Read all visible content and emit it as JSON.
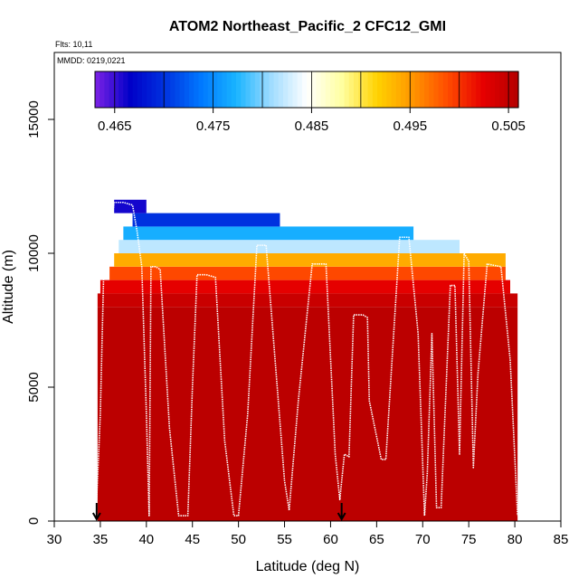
{
  "chart_data": {
    "type": "heatmap",
    "title": "ATOM2 Northeast_Pacific_2 CFC12_GMI",
    "flights_label": "Flts: 10,11",
    "mmdd_label": "MMDD: 0219,0221",
    "xlabel": "Latitude (deg N)",
    "ylabel": "Altitude (m)",
    "xlim": [
      30,
      85
    ],
    "ylim": [
      0,
      17500
    ],
    "x_ticks": [
      30,
      35,
      40,
      45,
      50,
      55,
      60,
      65,
      70,
      75,
      80,
      85
    ],
    "x_tick_labels": [
      "30",
      "35",
      "40",
      "45",
      "50",
      "55",
      "60",
      "65",
      "70",
      "75",
      "80",
      "85"
    ],
    "y_ticks": [
      0,
      5000,
      10000,
      15000
    ],
    "y_tick_labels": [
      "0",
      "5000",
      "10000",
      "15000"
    ],
    "colorbar": {
      "min": 0.463,
      "max": 0.506,
      "ticks": [
        0.465,
        0.475,
        0.485,
        0.495,
        0.505
      ],
      "tick_labels": [
        "0.465",
        "0.475",
        "0.485",
        "0.495",
        "0.505"
      ],
      "colors": [
        "#7d22e6",
        "#0000c8",
        "#0033e0",
        "#0078ff",
        "#19b4ff",
        "#a0dcff",
        "#ffffff",
        "#ffffa0",
        "#ffd200",
        "#ff9600",
        "#ff4b00",
        "#e60000",
        "#b40000"
      ]
    },
    "field_regions": [
      {
        "lat_start": 34.7,
        "lat_end": 80.3,
        "alt_start": 0,
        "alt_end": 8000,
        "value": 0.5055
      },
      {
        "lat_start": 34.7,
        "lat_end": 80.3,
        "alt_start": 8000,
        "alt_end": 8500,
        "value": 0.5045
      },
      {
        "lat_start": 35.0,
        "lat_end": 79.5,
        "alt_start": 8500,
        "alt_end": 9000,
        "value": 0.5025
      },
      {
        "lat_start": 36.0,
        "lat_end": 79.0,
        "alt_start": 9000,
        "alt_end": 9500,
        "value": 0.499
      },
      {
        "lat_start": 36.5,
        "lat_end": 79.0,
        "alt_start": 9500,
        "alt_end": 10000,
        "value": 0.494
      },
      {
        "lat_start": 37.0,
        "lat_end": 74.0,
        "alt_start": 10000,
        "alt_end": 10500,
        "value": 0.482
      },
      {
        "lat_start": 37.5,
        "lat_end": 69.0,
        "alt_start": 10500,
        "alt_end": 11000,
        "value": 0.477
      },
      {
        "lat_start": 38.5,
        "lat_end": 54.5,
        "alt_start": 11000,
        "alt_end": 11500,
        "value": 0.47
      },
      {
        "lat_start": 36.5,
        "lat_end": 40.0,
        "alt_start": 11500,
        "alt_end": 12000,
        "value": 0.466
      }
    ],
    "flight_track": {
      "lat": [
        34.6,
        35.0,
        35.5,
        36.0,
        36.5,
        37.5,
        38.5,
        39.0,
        39.5,
        40.0,
        40.3,
        40.5,
        41.0,
        41.5,
        42.5,
        43.5,
        44.5,
        45.0,
        45.5,
        46.5,
        47.5,
        48.5,
        49.5,
        50.0,
        51.0,
        52.0,
        53.0,
        55.0,
        55.5,
        56.5,
        58.0,
        59.5,
        60.5,
        61.0,
        61.5,
        62.0,
        62.5,
        63.5,
        64.0,
        64.2,
        65.5,
        66.0,
        67.5,
        68.5,
        69.5,
        70.2,
        70.5,
        71.0,
        71.5,
        72.0,
        73.0,
        73.5,
        74.0,
        74.5,
        75.0,
        75.5,
        76.0,
        77.0,
        78.5,
        79.5,
        80.3
      ],
      "alt": [
        800,
        4000,
        11200,
        10500,
        11900,
        11900,
        11800,
        10800,
        9500,
        4000,
        200,
        9500,
        9500,
        9400,
        3500,
        200,
        200,
        5000,
        9200,
        9200,
        9100,
        3000,
        200,
        200,
        4000,
        10300,
        10300,
        1500,
        400,
        4500,
        9600,
        9600,
        2500,
        800,
        2500,
        2400,
        7700,
        7700,
        7600,
        4500,
        2300,
        2300,
        10600,
        10600,
        7000,
        200,
        1800,
        7000,
        500,
        500,
        8800,
        8800,
        2500,
        10000,
        9700,
        2000,
        5500,
        9600,
        9500,
        6000,
        200
      ]
    },
    "arrows_lat": [
      34.6,
      61.2
    ]
  }
}
